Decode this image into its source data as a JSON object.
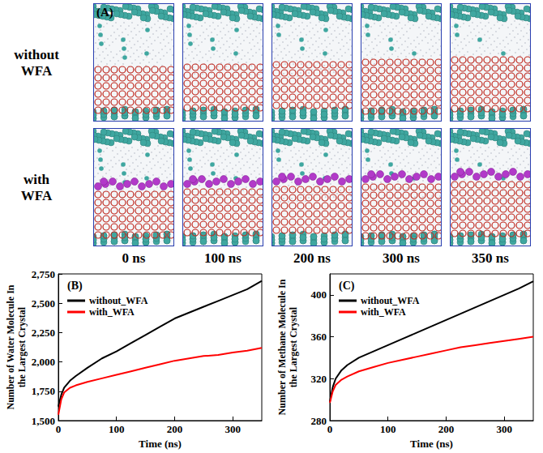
{
  "panel_a": {
    "label": "(A)",
    "rows": [
      "without WFA",
      "with WFA"
    ],
    "times": [
      "0 ns",
      "100 ns",
      "200 ns",
      "300 ns",
      "350 ns"
    ]
  },
  "chart_data": [
    {
      "type": "line",
      "panel": "(B)",
      "x_label": "Time (ns)",
      "y_label": "Number of Water Molecule In the Largest Crystal",
      "x": [
        0,
        5,
        10,
        20,
        30,
        50,
        75,
        100,
        125,
        150,
        175,
        200,
        225,
        250,
        275,
        300,
        325,
        350
      ],
      "series": [
        {
          "name": "without_WFA",
          "color": "#000000",
          "values": [
            1620,
            1720,
            1780,
            1840,
            1880,
            1950,
            2030,
            2090,
            2160,
            2230,
            2300,
            2370,
            2420,
            2470,
            2520,
            2570,
            2620,
            2690
          ]
        },
        {
          "name": "with_WFA",
          "color": "#ff0000",
          "values": [
            1550,
            1680,
            1740,
            1780,
            1800,
            1830,
            1860,
            1890,
            1920,
            1950,
            1980,
            2010,
            2030,
            2050,
            2060,
            2080,
            2095,
            2120
          ]
        }
      ],
      "xlim": [
        0,
        350
      ],
      "xticks": [
        0,
        100,
        200,
        300
      ],
      "ylim": [
        1500,
        2750
      ],
      "yticks": [
        1500,
        1750,
        2000,
        2250,
        2500,
        2750
      ],
      "legend": "top-left",
      "grid": false
    },
    {
      "type": "line",
      "panel": "(C)",
      "x_label": "Time (ns)",
      "y_label": "Number of Methane Molecule In the Largest Crystal",
      "x": [
        0,
        5,
        10,
        20,
        30,
        50,
        75,
        100,
        125,
        150,
        175,
        200,
        225,
        250,
        275,
        300,
        325,
        350
      ],
      "series": [
        {
          "name": "without_WFA",
          "color": "#000000",
          "values": [
            298,
            312,
            320,
            328,
            333,
            340,
            346,
            352,
            358,
            364,
            370,
            376,
            382,
            388,
            394,
            400,
            406,
            413
          ]
        },
        {
          "name": "with_WFA",
          "color": "#ff0000",
          "values": [
            297,
            308,
            314,
            319,
            322,
            327,
            331,
            335,
            338,
            341,
            344,
            347,
            350,
            352,
            354,
            356,
            358,
            360
          ]
        }
      ],
      "xlim": [
        0,
        350
      ],
      "xticks": [
        0,
        100,
        200,
        300
      ],
      "ylim": [
        280,
        420
      ],
      "yticks": [
        280,
        320,
        360,
        400
      ],
      "legend": "top-left",
      "grid": false
    }
  ]
}
